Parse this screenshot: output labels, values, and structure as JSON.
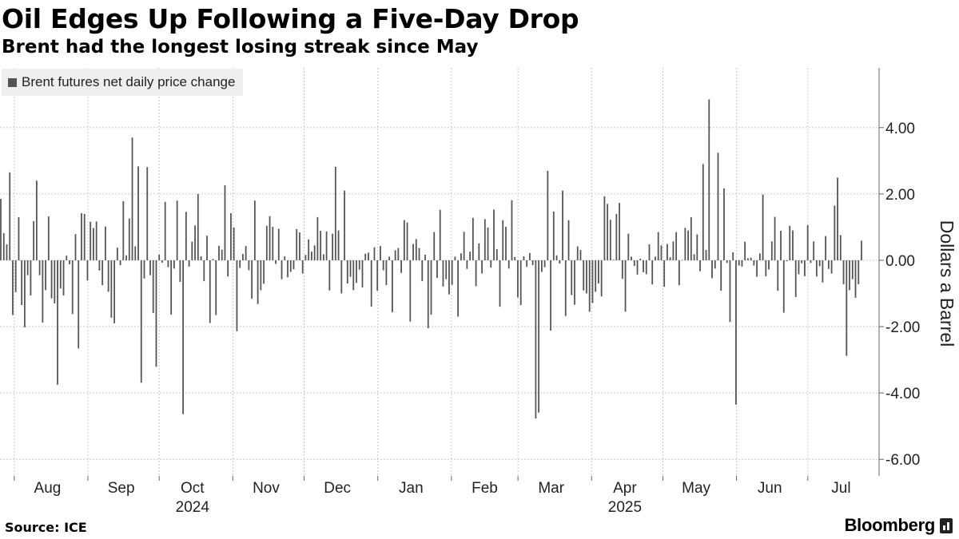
{
  "header": {
    "title": "Oil Edges Up Following a Five-Day Drop",
    "subtitle": "Brent had the longest losing streak since May"
  },
  "footer": {
    "source": "Source: ICE",
    "brand": "Bloomberg"
  },
  "colors": {
    "bar": "#555555",
    "grid": "#c8c8c8",
    "axis": "#666666",
    "legend_bg": "#efefef"
  },
  "chart_data": {
    "type": "bar",
    "title": "Oil Edges Up Following a Five-Day Drop",
    "subtitle": "Brent had the longest losing streak since May",
    "ylabel": "Dollars a Barrel",
    "ylim": [
      -6.5,
      5.8
    ],
    "yticks": [
      4,
      2,
      0,
      -2,
      -4,
      -6
    ],
    "ytick_labels": [
      "4.00",
      "2.00",
      "0.00",
      "-2.00",
      "-4.00",
      "-6.00"
    ],
    "x_range": [
      "2024-07-26",
      "2025-07-31"
    ],
    "x_month_labels": [
      {
        "label": "Aug",
        "date": "2024-08-15"
      },
      {
        "label": "Sep",
        "date": "2024-09-15"
      },
      {
        "label": "Oct",
        "date": "2024-10-15"
      },
      {
        "label": "Nov",
        "date": "2024-11-15"
      },
      {
        "label": "Dec",
        "date": "2024-12-15"
      },
      {
        "label": "Jan",
        "date": "2025-01-15"
      },
      {
        "label": "Feb",
        "date": "2025-02-15"
      },
      {
        "label": "Mar",
        "date": "2025-03-15"
      },
      {
        "label": "Apr",
        "date": "2025-04-15"
      },
      {
        "label": "May",
        "date": "2025-05-15"
      },
      {
        "label": "Jun",
        "date": "2025-06-15"
      },
      {
        "label": "Jul",
        "date": "2025-07-15"
      }
    ],
    "x_year_labels": [
      {
        "label": "2024",
        "date": "2024-10-15"
      },
      {
        "label": "2025",
        "date": "2025-04-15"
      }
    ],
    "grid": true,
    "legend": {
      "position": "top-left"
    },
    "series": [
      {
        "name": "Brent futures net daily price change",
        "values": [
          1.85,
          0.82,
          0.48,
          2.65,
          -1.65,
          -0.96,
          1.3,
          -1.35,
          -2.02,
          -0.45,
          -1.06,
          1.18,
          2.4,
          -0.45,
          -1.88,
          -0.9,
          1.32,
          -1.15,
          -1.3,
          -3.75,
          -0.85,
          -1.06,
          0.14,
          -0.12,
          -1.62,
          0.79,
          -2.66,
          1.42,
          1.4,
          -0.61,
          1.16,
          0.97,
          1.17,
          -0.31,
          -0.75,
          1.02,
          -0.95,
          -1.73,
          -1.9,
          0.38,
          -0.15,
          1.78,
          0.15,
          1.26,
          3.7,
          0.42,
          2.83,
          -3.69,
          -0.55,
          2.81,
          -0.45,
          -1.59,
          -3.21,
          0.17,
          -0.07,
          1.76,
          -0.21,
          -1.64,
          -0.25,
          1.8,
          -0.65,
          -4.64,
          1.46,
          -0.19,
          0.56,
          1.05,
          2.0,
          0.12,
          -0.63,
          0.74,
          -1.89,
          0.04,
          -1.65,
          0.44,
          0.32,
          2.26,
          -0.49,
          1.42,
          0.99,
          -2.14,
          -0.23,
          0.19,
          0.43,
          -0.3,
          -1.16,
          1.8,
          -1.32,
          -0.9,
          -0.71,
          1.04,
          1.33,
          1.01,
          -0.11,
          0.95,
          -0.57,
          0.12,
          -0.51,
          -0.35,
          -0.27,
          0.94,
          0.84,
          -0.4,
          0.16,
          0.63,
          0.26,
          0.45,
          1.3,
          0.89,
          0.18,
          0.87,
          -0.91,
          0.8,
          2.82,
          0.9,
          -1.0,
          2.1,
          -0.7,
          -0.5,
          -0.9,
          -0.68,
          -0.28,
          -0.82,
          0.2,
          0.23,
          -1.4,
          0.39,
          -0.92,
          0.43,
          -0.3,
          -0.75,
          0.11,
          -1.57,
          0.3,
          0.37,
          -0.38,
          1.21,
          1.14,
          -1.85,
          0.49,
          0.64,
          0.37,
          -0.63,
          0.17,
          -2.05,
          -1.64,
          0.85,
          -0.53,
          1.52,
          -0.79,
          -0.57,
          -1.03,
          -0.74,
          0.11,
          -1.7,
          0.21,
          0.86,
          -0.26,
          0.26,
          1.28,
          -0.78,
          0.51,
          -0.4,
          1.24,
          0.99,
          -0.22,
          1.53,
          0.34,
          -1.4,
          1.21,
          1.01,
          -0.25,
          1.81,
          0.1,
          -1.12,
          -1.35,
          0.12,
          -0.2,
          0.22,
          -0.15,
          -4.77,
          -4.59,
          -0.35,
          -0.21,
          2.7,
          -2.12,
          1.47,
          0.15,
          -0.1,
          2.1,
          -1.68,
          1.21,
          -1.05,
          -1.34,
          0.42,
          0.31,
          -0.91,
          -1.0,
          -1.55,
          -1.29,
          -0.95,
          -0.7,
          -1.09,
          1.93,
          1.7,
          1.22,
          0.02,
          1.4,
          1.73,
          -0.56,
          -1.55,
          0.8,
          0.11,
          -0.17,
          -0.43,
          0.05,
          -0.36,
          -0.42,
          0.48,
          -0.73,
          0.11,
          0.85,
          0.45,
          -0.8,
          0.49,
          0.09,
          0.57,
          0.85,
          -0.75,
          0.01,
          0.98,
          0.9,
          1.3,
          0.18,
          0.78,
          -0.33,
          2.9,
          0.31,
          4.85,
          -0.54,
          -0.25,
          3.24,
          -0.92,
          2.17,
          -0.08,
          -1.86,
          0.24,
          -4.35,
          -0.16,
          -0.19,
          0.56,
          0.06,
          0.08,
          -0.16,
          -0.5,
          0.21,
          1.98,
          -0.48,
          -0.28,
          0.57,
          1.31,
          -0.92,
          0.89,
          -1.58,
          -0.03,
          1.04,
          0.9,
          -1.11,
          -0.42,
          -0.09,
          -0.48,
          1.06,
          -0.08,
          0.57,
          -0.49,
          -0.18,
          -0.67,
          0.73,
          -0.26,
          -0.4,
          1.65,
          2.49,
          0.76,
          -0.72,
          -2.88,
          -0.9,
          -0.57,
          -1.13,
          -0.72,
          0.59
        ]
      }
    ]
  }
}
